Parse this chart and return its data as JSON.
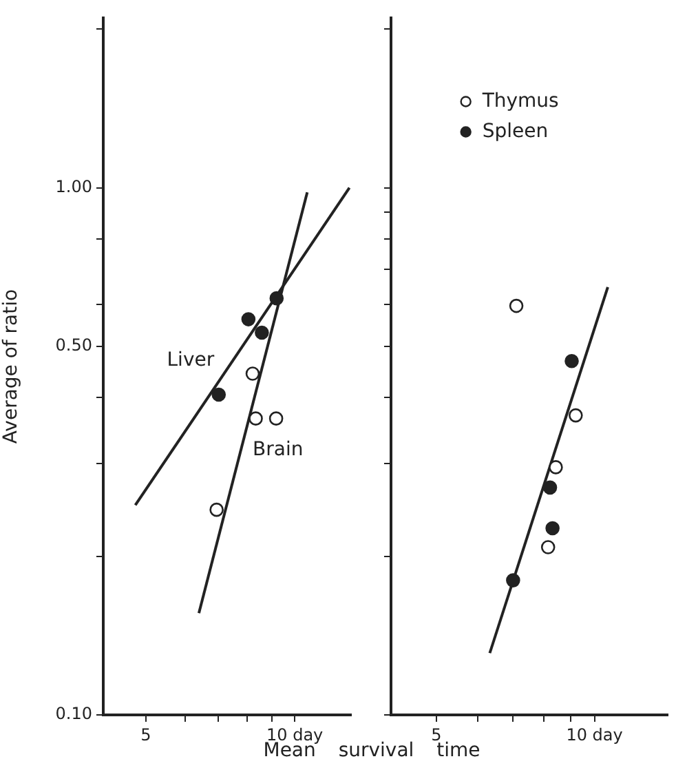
{
  "chart_data": [
    {
      "type": "scatter",
      "xlabel": "Mean survival time",
      "ylabel": "Average of ratio",
      "log": "xy",
      "grid": false,
      "legend": false,
      "marker": "circle",
      "xlim": [
        4.1,
        13
      ],
      "xticks": [
        5,
        {
          "value": 6,
          "label": null
        },
        {
          "value": 7,
          "label": null
        },
        {
          "value": 8,
          "label": null
        },
        {
          "value": 9,
          "label": null
        },
        {
          "value": 10,
          "label": "10 day"
        }
      ],
      "ylim": [
        0.1,
        2.1
      ],
      "yticks": [
        {
          "value": 0.1,
          "label": "0.10"
        },
        {
          "value": 0.2,
          "label": null
        },
        {
          "value": 0.3,
          "label": null
        },
        {
          "value": 0.4,
          "label": null
        },
        {
          "value": 0.5,
          "label": "0.50"
        },
        {
          "value": 0.6,
          "label": null
        },
        {
          "value": 0.8,
          "label": null
        },
        {
          "value": 1,
          "label": "1.00"
        },
        {
          "value": 2,
          "label": null
        }
      ],
      "series": [
        {
          "type": "scatter",
          "color": "#222222",
          "x": [
            7.02,
            8.06,
            8.58,
            9.19
          ],
          "values": [
            0.405,
            0.563,
            0.531,
            0.617
          ]
        },
        {
          "type": "scatter",
          "color": "#ffffff",
          "x": [
            8.22,
            8.34,
            9.17,
            6.95
          ],
          "values": [
            0.444,
            0.365,
            0.365,
            0.245
          ]
        },
        {
          "type": "line",
          "name": "Liver",
          "marker": "none",
          "color": "#222222",
          "x": [
            4.76,
            12.9
          ],
          "values": [
            0.25,
            1.0
          ]
        },
        {
          "type": "line",
          "name": "Brain",
          "marker": "none",
          "color": "#222222",
          "x": [
            6.4,
            10.6
          ],
          "values": [
            0.156,
            0.98
          ]
        }
      ]
    },
    {
      "type": "scatter",
      "log": "xy",
      "grid": false,
      "legend": "top left",
      "marker": "circle",
      "tick_labels": "x",
      "xlim": [
        4.1,
        13.8
      ],
      "xticks": [
        5,
        {
          "value": 6,
          "label": null
        },
        {
          "value": 7,
          "label": null
        },
        {
          "value": 8,
          "label": null
        },
        {
          "value": 9,
          "label": null
        },
        {
          "value": 10,
          "label": "10 day"
        }
      ],
      "ylim": [
        0.1,
        2.1
      ],
      "yticks": [
        0.1,
        0.2,
        0.3,
        0.4,
        0.5,
        0.6,
        0.7,
        0.8,
        0.9,
        1,
        2
      ],
      "series": [
        {
          "type": "scatter",
          "name": "Thymus",
          "color": "#ffffff",
          "x": [
            7.1,
            9.21,
            8.44,
            8.16
          ],
          "values": [
            0.597,
            0.37,
            0.295,
            0.208
          ]
        },
        {
          "type": "scatter",
          "name": "Spleen",
          "color": "#222222",
          "x": [
            9.05,
            8.23,
            8.32,
            7.0
          ],
          "values": [
            0.469,
            0.27,
            0.226,
            0.18
          ]
        },
        {
          "type": "line",
          "marker": "none",
          "color": "#222222",
          "x": [
            6.32,
            10.6
          ],
          "values": [
            0.131,
            0.648
          ]
        }
      ]
    }
  ]
}
